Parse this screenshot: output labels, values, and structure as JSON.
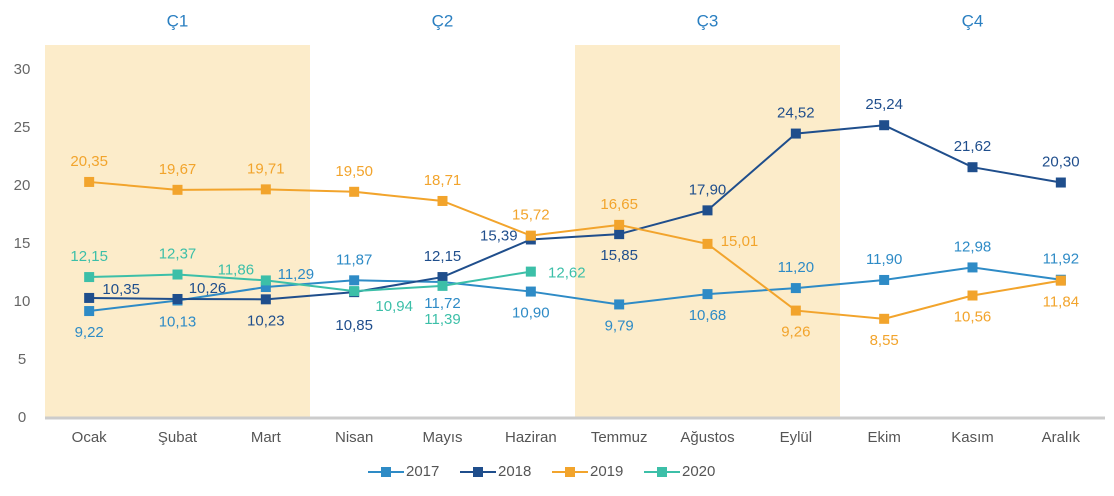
{
  "chart_data": {
    "type": "line",
    "categories": [
      "Ocak",
      "Şubat",
      "Mart",
      "Nisan",
      "Mayıs",
      "Haziran",
      "Temmuz",
      "Ağustos",
      "Eylül",
      "Ekim",
      "Kasım",
      "Aralık"
    ],
    "quarters": [
      {
        "label": "Ç1",
        "shaded": true
      },
      {
        "label": "Ç2",
        "shaded": false
      },
      {
        "label": "Ç3",
        "shaded": true
      },
      {
        "label": "Ç4",
        "shaded": false
      }
    ],
    "shade_color": "#fcecca",
    "series": [
      {
        "name": "2017",
        "color": "#2e8bc6",
        "values": [
          9.22,
          10.13,
          11.29,
          11.87,
          11.72,
          10.9,
          9.79,
          10.68,
          11.2,
          11.9,
          12.98,
          11.92
        ],
        "value_labels": [
          "9,22",
          "10,13",
          "11,29",
          "11,87",
          "11,72",
          "10,90",
          "9,79",
          "10,68",
          "11,20",
          "11,90",
          "12,98",
          "11,92"
        ]
      },
      {
        "name": "2018",
        "color": "#1f4e8c",
        "values": [
          10.35,
          10.26,
          10.23,
          10.85,
          12.15,
          15.39,
          15.85,
          17.9,
          24.52,
          25.24,
          21.62,
          20.3
        ],
        "value_labels": [
          "10,35",
          "10,26",
          "10,23",
          "10,85",
          "12,15",
          "15,39",
          "15,85",
          "17,90",
          "24,52",
          "25,24",
          "21,62",
          "20,30"
        ]
      },
      {
        "name": "2019",
        "color": "#f2a42c",
        "values": [
          20.35,
          19.67,
          19.71,
          19.5,
          18.71,
          15.72,
          16.65,
          15.01,
          9.26,
          8.55,
          10.56,
          11.84
        ],
        "value_labels": [
          "20,35",
          "19,67",
          "19,71",
          "19,50",
          "18,71",
          "15,72",
          "16,65",
          "15,01",
          "9,26",
          "8,55",
          "10,56",
          "11,84"
        ]
      },
      {
        "name": "2020",
        "color": "#3cbfa8",
        "values": [
          12.15,
          12.37,
          11.86,
          10.94,
          11.39,
          12.62,
          null,
          null,
          null,
          null,
          null,
          null
        ],
        "value_labels": [
          "12,15",
          "12,37",
          "11,86",
          "10,94",
          "11,39",
          "12,62",
          null,
          null,
          null,
          null,
          null,
          null
        ]
      }
    ],
    "ylim": [
      0,
      30
    ],
    "yticks": [
      0,
      5,
      10,
      15,
      20,
      25,
      30
    ],
    "grid": false
  }
}
